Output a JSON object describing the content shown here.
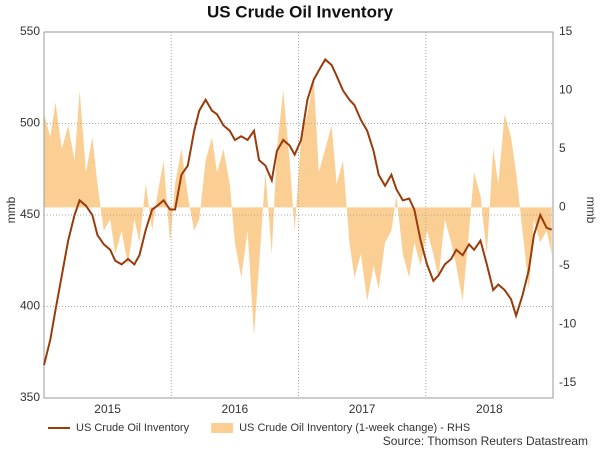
{
  "chart_data": {
    "type": "line",
    "title": "US Crude Oil Inventory",
    "ylabel": "mmb",
    "y2label": "mmb",
    "source": "Source: Thomson Reuters Datastream",
    "xlim": [
      2015,
      2019
    ],
    "xticks": [
      {
        "value": 2015.5,
        "label": "2015"
      },
      {
        "value": 2016.5,
        "label": "2016"
      },
      {
        "value": 2017.5,
        "label": "2017"
      },
      {
        "value": 2018.5,
        "label": "2018"
      }
    ],
    "xgrid": [
      2016,
      2017,
      2018
    ],
    "ylim": [
      350,
      550
    ],
    "yticks": [
      350,
      400,
      450,
      500,
      550
    ],
    "y2lim": [
      -16.3,
      15
    ],
    "y2ticks": [
      -15,
      -10,
      -5,
      0,
      5,
      10,
      15
    ],
    "grid": true,
    "x": [
      2015.0,
      2015.05,
      2015.09,
      2015.14,
      2015.19,
      2015.24,
      2015.28,
      2015.33,
      2015.38,
      2015.42,
      2015.47,
      2015.52,
      2015.56,
      2015.61,
      2015.66,
      2015.71,
      2015.75,
      2015.8,
      2015.85,
      2015.89,
      2015.94,
      2015.99,
      2016.03,
      2016.08,
      2016.13,
      2016.18,
      2016.22,
      2016.27,
      2016.32,
      2016.36,
      2016.41,
      2016.46,
      2016.5,
      2016.55,
      2016.6,
      2016.65,
      2016.69,
      2016.74,
      2016.79,
      2016.83,
      2016.88,
      2016.93,
      2016.97,
      2017.02,
      2017.07,
      2017.12,
      2017.16,
      2017.21,
      2017.26,
      2017.3,
      2017.35,
      2017.4,
      2017.44,
      2017.49,
      2017.54,
      2017.59,
      2017.63,
      2017.68,
      2017.73,
      2017.77,
      2017.82,
      2017.87,
      2017.91,
      2017.96,
      2018.01,
      2018.06,
      2018.1,
      2018.15,
      2018.2,
      2018.24,
      2018.29,
      2018.34,
      2018.38,
      2018.43,
      2018.48,
      2018.53,
      2018.57,
      2018.62,
      2018.67,
      2018.71,
      2018.76,
      2018.81,
      2018.85,
      2018.9,
      2018.95,
      2018.99
    ],
    "series": [
      {
        "name": "US Crude Oil Inventory",
        "type": "line",
        "color": "#9a3b0c",
        "values": [
          368,
          382,
          398,
          417,
          436,
          450,
          458,
          455,
          450,
          439,
          434,
          431,
          425,
          423,
          426,
          423,
          428,
          442,
          453,
          455,
          458,
          453,
          453,
          472,
          477,
          496,
          507,
          513,
          507,
          505,
          499,
          496,
          491,
          493,
          491,
          496,
          480,
          477,
          469,
          485,
          491,
          488,
          483,
          491,
          513,
          524,
          529,
          535,
          532,
          526,
          518,
          513,
          510,
          502,
          496,
          485,
          472,
          466,
          472,
          464,
          458,
          459,
          453,
          436,
          423,
          414,
          417,
          423,
          426,
          431,
          428,
          434,
          431,
          436,
          423,
          409,
          412,
          409,
          404,
          395,
          406,
          420,
          439,
          450,
          443,
          442
        ]
      },
      {
        "name": "US Crude Oil Inventory (1-week change) - RHS",
        "type": "area",
        "axis": "y2",
        "color": "#fbcf93",
        "values": [
          8,
          6,
          9,
          5,
          7,
          4,
          10,
          3,
          6,
          2,
          -2,
          -1,
          -4,
          -2,
          -5,
          -1,
          -3,
          2,
          -2,
          1,
          4,
          -3,
          2,
          5,
          1,
          -2,
          -1,
          4,
          6,
          3,
          5,
          2,
          -3,
          -6,
          -2,
          -11,
          -5,
          3,
          -4,
          5,
          10,
          4,
          -2,
          6,
          8,
          11,
          3,
          5,
          7,
          2,
          4,
          -3,
          -6,
          -4,
          -8,
          -5,
          -7,
          -3,
          -2,
          1,
          -4,
          -6,
          -3,
          -5,
          -2,
          -4,
          -6,
          -1,
          -3,
          -5,
          -8,
          -2,
          3,
          1,
          -4,
          5,
          2,
          8,
          6,
          3,
          -2,
          -7,
          -1,
          -3,
          -2,
          -4
        ]
      }
    ]
  }
}
